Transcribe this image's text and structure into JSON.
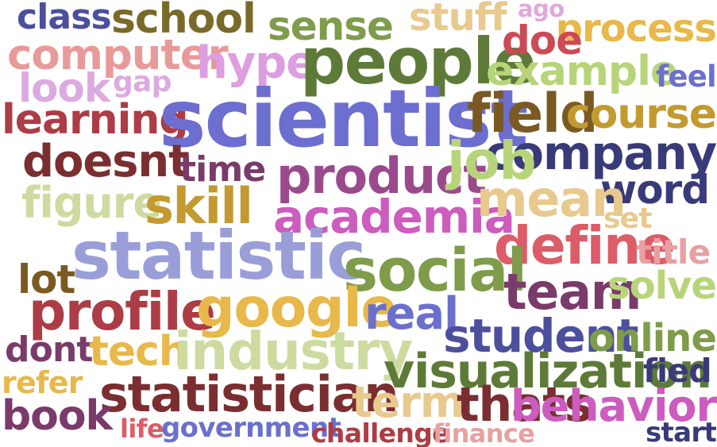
{
  "words": [
    {
      "text": "class",
      "color": "#4b4f9c"
    },
    {
      "text": "school",
      "color": "#7a6a2a"
    },
    {
      "text": "sense",
      "color": "#7e9c4a"
    },
    {
      "text": "stuff",
      "color": "#e8c98e"
    },
    {
      "text": "ago",
      "color": "#e0a8d8"
    },
    {
      "text": "process",
      "color": "#e8b84a"
    },
    {
      "text": "computer",
      "color": "#e89a9a"
    },
    {
      "text": "hype",
      "color": "#dc9ee0"
    },
    {
      "text": "people",
      "color": "#5e7a38"
    },
    {
      "text": "doe",
      "color": "#cc4a55"
    },
    {
      "text": "look",
      "color": "#dcaae0"
    },
    {
      "text": "gap",
      "color": "#dcaae0"
    },
    {
      "text": "example",
      "color": "#b8d47a"
    },
    {
      "text": "feel",
      "color": "#6a70cc"
    },
    {
      "text": "learning",
      "color": "#ac3c45"
    },
    {
      "text": "scientist",
      "color": "#6c6ed0"
    },
    {
      "text": "field",
      "color": "#7a5a22"
    },
    {
      "text": "course",
      "color": "#c29a30"
    },
    {
      "text": "company",
      "color": "#393a78"
    },
    {
      "text": "doesnt",
      "color": "#7a2e30"
    },
    {
      "text": "time",
      "color": "#7a3a6a"
    },
    {
      "text": "product",
      "color": "#9a4a8c"
    },
    {
      "text": "job",
      "color": "#b8d47a"
    },
    {
      "text": "word",
      "color": "#393a78"
    },
    {
      "text": "figure",
      "color": "#cedba0"
    },
    {
      "text": "skill",
      "color": "#c29a30"
    },
    {
      "text": "academia",
      "color": "#cc5cbe"
    },
    {
      "text": "mean",
      "color": "#e8c98e"
    },
    {
      "text": "set",
      "color": "#e8c98e"
    },
    {
      "text": "statistic",
      "color": "#9a9ed8"
    },
    {
      "text": "define",
      "color": "#dc5c68"
    },
    {
      "text": "title",
      "color": "#e8a0a0"
    },
    {
      "text": "lot",
      "color": "#7a5a22"
    },
    {
      "text": "social",
      "color": "#7e9c4a"
    },
    {
      "text": "team",
      "color": "#7a3a6a"
    },
    {
      "text": "solve",
      "color": "#b8d47a"
    },
    {
      "text": "profile",
      "color": "#ac3c45"
    },
    {
      "text": "google",
      "color": "#e8b84a"
    },
    {
      "text": "real",
      "color": "#6a70cc"
    },
    {
      "text": "student",
      "color": "#4b4f9c"
    },
    {
      "text": "online",
      "color": "#7e9c4a"
    },
    {
      "text": "dont",
      "color": "#7a3a6a"
    },
    {
      "text": "tech",
      "color": "#e8b84a"
    },
    {
      "text": "industry",
      "color": "#cedba0"
    },
    {
      "text": "visualization",
      "color": "#5e7a38"
    },
    {
      "text": "fied",
      "color": "#393a78"
    },
    {
      "text": "refer",
      "color": "#e8b84a"
    },
    {
      "text": "statistician",
      "color": "#7a2e30"
    },
    {
      "text": "term",
      "color": "#e8c98e"
    },
    {
      "text": "thats",
      "color": "#7a2e30"
    },
    {
      "text": "behavior",
      "color": "#cc5cbe"
    },
    {
      "text": "book",
      "color": "#7a3a6a"
    },
    {
      "text": "life",
      "color": "#dc5c68"
    },
    {
      "text": "government",
      "color": "#6a70cc"
    },
    {
      "text": "challenge",
      "color": "#ac3c45"
    },
    {
      "text": "finance",
      "color": "#e8a0a0"
    },
    {
      "text": "start",
      "color": "#393a78"
    }
  ]
}
